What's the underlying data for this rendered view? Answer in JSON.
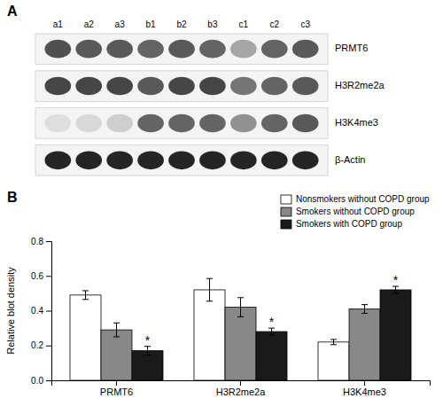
{
  "chart_data": [
    {
      "type": "heatmap",
      "title": "A",
      "categories": [
        "a1",
        "a2",
        "a3",
        "b1",
        "b2",
        "b3",
        "c1",
        "c2",
        "c3"
      ],
      "rows": [
        "PRMT6",
        "H3R2me2a",
        "H3K4me3",
        "β-Actin"
      ],
      "cells": [
        [
          0.75,
          0.72,
          0.72,
          0.68,
          0.72,
          0.68,
          0.45,
          0.68,
          0.72
        ],
        [
          0.78,
          0.78,
          0.78,
          0.72,
          0.78,
          0.78,
          0.62,
          0.68,
          0.72
        ],
        [
          0.22,
          0.25,
          0.3,
          0.68,
          0.68,
          0.68,
          0.52,
          0.68,
          0.72
        ],
        [
          0.88,
          0.88,
          0.88,
          0.88,
          0.88,
          0.88,
          0.88,
          0.88,
          0.88
        ]
      ]
    },
    {
      "type": "bar",
      "title": "B",
      "categories": [
        "PRMT6",
        "H3R2me2a",
        "H3K4me3"
      ],
      "series": [
        {
          "name": "Nonsmokers without COPD group",
          "color": "#ffffff",
          "values": [
            0.49,
            0.52,
            0.22
          ],
          "errors": [
            0.025,
            0.065,
            0.015
          ]
        },
        {
          "name": "Smokers without COPD group",
          "color": "#888888",
          "values": [
            0.29,
            0.42,
            0.41
          ],
          "errors": [
            0.04,
            0.055,
            0.025
          ]
        },
        {
          "name": "Smokers with COPD group",
          "color": "#1a1a1a",
          "values": [
            0.17,
            0.28,
            0.52
          ],
          "errors": [
            0.025,
            0.02,
            0.02
          ],
          "annotations": [
            "*",
            "*",
            "*"
          ]
        }
      ],
      "ylabel": "Relative blot density",
      "ylim": [
        0.0,
        0.8
      ],
      "yticks": [
        {
          "value": 0.0,
          "label": "0.0"
        },
        0.2,
        0.4,
        0.6,
        0.8
      ],
      "grid": false,
      "legend": "upper right"
    }
  ]
}
